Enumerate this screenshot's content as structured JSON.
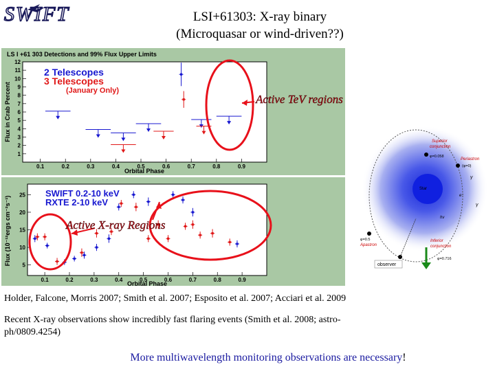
{
  "logo_text": "SWIFT",
  "slide": {
    "title_line1": "LSI+61303: X-ray binary",
    "title_line2": "(Microquasar or wind-driven??)",
    "annotation_tev": "Active TeV regions",
    "annotation_xray": "Active X-ray Regions",
    "references": "Holder, Falcone, Morris 2007; Smith et al. 2007; Esposito et al. 2007; Acciari et al. 2009",
    "recent_line1": "Recent X-ray observations show incredibly fast flaring events (Smith et al. 2008; astro-",
    "recent_line2": "ph/0809.4254)",
    "conclusion": "More multiwavelength monitoring observations are necessary",
    "conclusion_bang": "!"
  },
  "colors": {
    "panel_bg": "#a9c8a4",
    "plot_bg": "#ffffff",
    "highlight_red": "#e8101a",
    "annotation_text": "#b0101a",
    "legend_blue": "#1818d0",
    "legend_red": "#e01818",
    "conclusion_blue": "#1a1aa0"
  },
  "chart_data": [
    {
      "type": "scatter",
      "title": "LS I +61 303 Detections and 99% Flux Upper Limits",
      "xlabel": "Orbital Phase",
      "ylabel": "Flux in Crab Percent",
      "xlim": [
        0.03,
        1.0
      ],
      "ylim": [
        0,
        12
      ],
      "x_ticks": [
        0.1,
        0.2,
        0.3,
        0.4,
        0.5,
        0.6,
        0.7,
        0.8,
        0.9
      ],
      "x_tick_labels": [
        "0.1",
        "0.2",
        "0.3",
        "0.4",
        "0.5",
        "0.6",
        "0.7",
        "0.8",
        "0.9"
      ],
      "y_ticks": [
        0,
        1,
        2,
        3,
        4,
        5,
        6,
        7,
        8,
        9,
        10,
        11,
        12
      ],
      "y_tick_labels": [
        "",
        "1",
        "2",
        "3",
        "4",
        "5",
        "6",
        "7",
        "8",
        "9",
        "10",
        "11",
        "12"
      ],
      "legend_placement": "top-left",
      "series": [
        {
          "name": "2 Telescopes",
          "color": "#1818d0",
          "points": [
            {
              "x": 0.66,
              "y": 10.5,
              "err": 1.4
            }
          ],
          "upper_limits": [
            {
              "x_from": 0.12,
              "x_to": 0.22,
              "y": 6.1
            },
            {
              "x_from": 0.28,
              "x_to": 0.38,
              "y": 3.9
            },
            {
              "x_from": 0.38,
              "x_to": 0.48,
              "y": 3.5
            },
            {
              "x_from": 0.48,
              "x_to": 0.58,
              "y": 4.6
            },
            {
              "x_from": 0.7,
              "x_to": 0.78,
              "y": 5.1
            },
            {
              "x_from": 0.8,
              "x_to": 0.9,
              "y": 5.5
            }
          ]
        },
        {
          "name": "3 Telescopes",
          "name_note": "(January Only)",
          "color": "#e01818",
          "points": [
            {
              "x": 0.67,
              "y": 7.5,
              "err": 1.0
            }
          ],
          "upper_limits": [
            {
              "x_from": 0.38,
              "x_to": 0.48,
              "y": 2.1
            },
            {
              "x_from": 0.55,
              "x_to": 0.63,
              "y": 3.7
            },
            {
              "x_from": 0.72,
              "x_to": 0.78,
              "y": 4.3
            }
          ]
        }
      ]
    },
    {
      "type": "scatter",
      "xlabel": "Orbital Phase",
      "ylabel": "Flux (10⁻¹²ergs cm⁻²s⁻¹)",
      "xlim": [
        0.03,
        1.0
      ],
      "ylim": [
        2,
        28
      ],
      "x_ticks": [
        0.1,
        0.2,
        0.3,
        0.4,
        0.5,
        0.6,
        0.7,
        0.8,
        0.9
      ],
      "x_tick_labels": [
        "0.1",
        "0.2",
        "0.3",
        "0.4",
        "0.5",
        "0.6",
        "0.7",
        "0.8",
        "0.9"
      ],
      "y_ticks": [
        5,
        10,
        15,
        20,
        25
      ],
      "y_tick_labels": [
        "5",
        "10",
        "15",
        "20",
        "25"
      ],
      "legend_placement": "top-left",
      "series": [
        {
          "name": "SWIFT 0.2-10 keV",
          "color": "#1818d0",
          "points": [
            {
              "x": 0.06,
              "y": 12.5,
              "err": 1.0
            },
            {
              "x": 0.11,
              "y": 10.5,
              "err": 0.8
            },
            {
              "x": 0.18,
              "y": 5.8,
              "err": 0.8
            },
            {
              "x": 0.22,
              "y": 6.8,
              "err": 0.8
            },
            {
              "x": 0.26,
              "y": 7.8,
              "err": 1.0
            },
            {
              "x": 0.31,
              "y": 10.0,
              "err": 1.0
            },
            {
              "x": 0.36,
              "y": 12.5,
              "err": 1.2
            },
            {
              "x": 0.4,
              "y": 21.5,
              "err": 1.0
            },
            {
              "x": 0.46,
              "y": 25.0,
              "err": 1.0
            },
            {
              "x": 0.52,
              "y": 23.0,
              "err": 1.2
            },
            {
              "x": 0.62,
              "y": 25.0,
              "err": 1.0
            },
            {
              "x": 0.66,
              "y": 23.5,
              "err": 1.0
            },
            {
              "x": 0.7,
              "y": 20.0,
              "err": 1.2
            },
            {
              "x": 0.88,
              "y": 11.0,
              "err": 1.0
            }
          ]
        },
        {
          "name": "RXTE 2-10 keV",
          "color": "#e01818",
          "points": [
            {
              "x": 0.07,
              "y": 13.0,
              "err": 1.0
            },
            {
              "x": 0.1,
              "y": 13.0,
              "err": 1.0
            },
            {
              "x": 0.15,
              "y": 6.0,
              "err": 1.0
            },
            {
              "x": 0.25,
              "y": 8.5,
              "err": 1.2
            },
            {
              "x": 0.31,
              "y": 14.0,
              "err": 1.2
            },
            {
              "x": 0.37,
              "y": 14.5,
              "err": 1.0
            },
            {
              "x": 0.41,
              "y": 22.5,
              "err": 1.0
            },
            {
              "x": 0.47,
              "y": 21.5,
              "err": 1.2
            },
            {
              "x": 0.52,
              "y": 12.5,
              "err": 1.0
            },
            {
              "x": 0.56,
              "y": 16.5,
              "err": 1.2
            },
            {
              "x": 0.6,
              "y": 12.5,
              "err": 1.0
            },
            {
              "x": 0.67,
              "y": 16.0,
              "err": 1.0
            },
            {
              "x": 0.7,
              "y": 16.5,
              "err": 1.2
            },
            {
              "x": 0.73,
              "y": 13.5,
              "err": 1.0
            },
            {
              "x": 0.78,
              "y": 14.0,
              "err": 1.2
            },
            {
              "x": 0.85,
              "y": 11.5,
              "err": 1.0
            }
          ]
        }
      ]
    }
  ],
  "orbit_diagram": {
    "labels": {
      "superior": "Superior",
      "conjunction": "conjunction",
      "phi_sup": "φ=0.058",
      "periastron": "Periastron",
      "phi_peri": "(φ=0)",
      "star": "Star",
      "phi_apastron": "φ=0.5",
      "apastron": "Apastron",
      "inferior": "Inferior",
      "inf_conjunction": "conjunction",
      "phi_inf": "φ=0.716",
      "observer": "observer",
      "gamma": "γ",
      "e_minus": "e⁻",
      "h_nu": "hν"
    }
  }
}
